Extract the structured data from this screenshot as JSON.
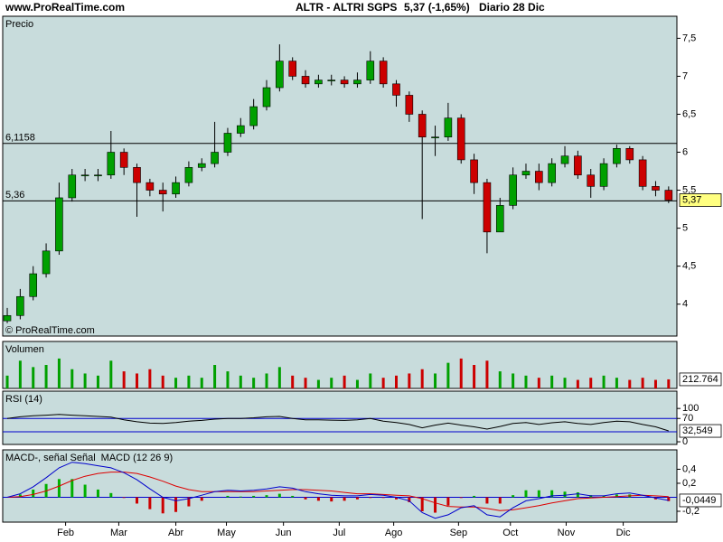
{
  "header": {
    "site": "www.ProRealTime.com",
    "title": "ALTR - ALTRI SGPS",
    "quote": "5,37 (-1,65%)",
    "period": "Diario  28 Dic"
  },
  "chart_data": [
    {
      "type": "candlestick",
      "title": "Precio",
      "watermark": "© ProRealTime.com",
      "xlim": [
        -0.35,
        51.64
      ],
      "ylim": [
        3.58,
        7.79
      ],
      "yticks": [
        {
          "value": 7.5,
          "label": "7,5"
        },
        7,
        {
          "value": 6.5,
          "label": "6,5"
        },
        6,
        {
          "value": 5.5,
          "label": "5,5"
        },
        5,
        {
          "value": 4.5,
          "label": "4,5"
        },
        4
      ],
      "up_color": "#00a000",
      "down_color": "#cc0000",
      "open": [
        3.78,
        3.85,
        4.1,
        4.4,
        4.7,
        5.4,
        5.7,
        5.7,
        5.7,
        6.0,
        5.8,
        5.6,
        5.5,
        5.45,
        5.6,
        5.8,
        5.85,
        6.0,
        6.25,
        6.35,
        6.6,
        6.85,
        7.2,
        7.0,
        6.9,
        6.95,
        6.95,
        6.9,
        6.95,
        7.2,
        6.9,
        6.75,
        6.5,
        6.2,
        6.2,
        6.45,
        5.9,
        5.6,
        4.95,
        5.3,
        5.7,
        5.75,
        5.6,
        5.85,
        5.95,
        5.7,
        5.55,
        5.85,
        6.05,
        5.9,
        5.55,
        5.5
      ],
      "high": [
        3.95,
        4.2,
        4.5,
        4.8,
        5.6,
        5.78,
        5.78,
        5.78,
        6.28,
        6.05,
        5.85,
        5.65,
        5.6,
        5.68,
        5.88,
        5.92,
        6.4,
        6.32,
        6.45,
        6.7,
        6.95,
        7.42,
        7.25,
        7.08,
        7.02,
        7.02,
        7.0,
        7.05,
        7.33,
        7.25,
        6.95,
        6.8,
        6.55,
        6.35,
        6.65,
        6.5,
        5.98,
        5.65,
        5.4,
        5.8,
        5.85,
        5.85,
        5.92,
        6.08,
        6.02,
        5.78,
        5.92,
        6.1,
        6.08,
        5.95,
        5.62,
        5.55
      ],
      "low": [
        3.75,
        3.8,
        4.05,
        4.35,
        4.65,
        5.35,
        5.62,
        5.62,
        5.65,
        5.7,
        5.15,
        5.42,
        5.22,
        5.4,
        5.55,
        5.75,
        5.8,
        5.95,
        6.2,
        6.3,
        6.55,
        6.8,
        6.95,
        6.85,
        6.85,
        6.88,
        6.85,
        6.85,
        6.9,
        6.85,
        6.6,
        6.4,
        5.12,
        5.95,
        6.15,
        5.85,
        5.45,
        4.67,
        4.95,
        5.25,
        5.65,
        5.5,
        5.55,
        5.8,
        5.65,
        5.4,
        5.5,
        5.8,
        5.85,
        5.5,
        5.42,
        5.33
      ],
      "close": [
        3.85,
        4.1,
        4.4,
        4.7,
        5.4,
        5.7,
        5.7,
        5.7,
        6.0,
        5.8,
        5.6,
        5.5,
        5.45,
        5.6,
        5.8,
        5.85,
        6.0,
        6.25,
        6.35,
        6.6,
        6.85,
        7.2,
        7.0,
        6.9,
        6.95,
        6.95,
        6.9,
        6.95,
        7.2,
        6.9,
        6.75,
        6.5,
        6.2,
        6.2,
        6.45,
        5.9,
        5.6,
        4.95,
        5.3,
        5.7,
        5.75,
        5.6,
        5.85,
        5.95,
        5.7,
        5.55,
        5.85,
        6.05,
        5.9,
        5.55,
        5.5,
        5.37
      ],
      "reference_lines": [
        {
          "value": 6.1158,
          "label": "6,1158"
        },
        {
          "value": 5.36,
          "label": "5,36"
        }
      ],
      "current": {
        "value": 5.37,
        "label": "5,37",
        "color": "#ffff80"
      }
    },
    {
      "type": "bar",
      "title": "Volumen",
      "xlim": [
        -0.35,
        51.64
      ],
      "ylim": [
        0,
        1100000
      ],
      "values": [
        300000,
        650000,
        500000,
        550000,
        700000,
        450000,
        350000,
        300000,
        650000,
        400000,
        350000,
        450000,
        300000,
        250000,
        300000,
        250000,
        550000,
        400000,
        300000,
        250000,
        350000,
        500000,
        300000,
        250000,
        200000,
        250000,
        300000,
        200000,
        350000,
        250000,
        300000,
        350000,
        450000,
        350000,
        600000,
        700000,
        550000,
        650000,
        400000,
        350000,
        300000,
        250000,
        300000,
        250000,
        200000,
        250000,
        300000,
        250000,
        200000,
        250000,
        200000,
        212764
      ],
      "current": {
        "value": 212764,
        "label": "212.764",
        "color": "#ffffff"
      }
    },
    {
      "type": "line",
      "title": "RSI (14)",
      "xlim": [
        -0.35,
        51.64
      ],
      "ylim": [
        -8,
        152
      ],
      "yticks": [
        0,
        70,
        100
      ],
      "levels": [
        70,
        30
      ],
      "level_color": "#0000cc",
      "series": [
        {
          "color": "#000000",
          "values": [
            70,
            75,
            78,
            80,
            82,
            80,
            78,
            76,
            74,
            66,
            60,
            56,
            55,
            58,
            62,
            64,
            68,
            70,
            70,
            72,
            75,
            76,
            70,
            66,
            66,
            65,
            64,
            66,
            70,
            62,
            58,
            52,
            42,
            50,
            56,
            50,
            45,
            38,
            46,
            55,
            58,
            52,
            57,
            60,
            55,
            52,
            58,
            62,
            60,
            52,
            45,
            32.549
          ]
        }
      ],
      "current": {
        "value": 32.549,
        "label": "32,549",
        "color": "#ffffff"
      }
    },
    {
      "type": "line",
      "xlim": [
        -0.35,
        51.64
      ],
      "ylim": [
        -0.355,
        0.677
      ],
      "yticks": [
        {
          "value": 0.4,
          "label": "0,4"
        },
        {
          "value": 0.2,
          "label": "0,2"
        },
        {
          "value": -0.2,
          "label": "-0,2"
        }
      ],
      "levels": [
        0
      ],
      "level_color": "#0000cc",
      "xticks": [
        {
          "value": 4.5,
          "label": "Feb"
        },
        {
          "value": 8.6,
          "label": "Mar"
        },
        {
          "value": 13.0,
          "label": "Abr"
        },
        {
          "value": 16.9,
          "label": "May"
        },
        {
          "value": 21.3,
          "label": "Jun"
        },
        {
          "value": 25.6,
          "label": "Jul"
        },
        {
          "value": 29.8,
          "label": "Ago"
        },
        {
          "value": 34.8,
          "label": "Sep"
        },
        {
          "value": 38.8,
          "label": "Oct"
        },
        {
          "value": 43.1,
          "label": "Nov"
        },
        {
          "value": 47.5,
          "label": "Dic"
        }
      ],
      "histogram": {
        "up_color": "#00b000",
        "down_color": "#cc0000",
        "values": [
          0,
          0.04,
          0.11,
          0.19,
          0.26,
          0.26,
          0.18,
          0.11,
          0.06,
          -0.01,
          -0.09,
          -0.17,
          -0.23,
          -0.21,
          -0.13,
          -0.05,
          0,
          0.02,
          0.01,
          0.02,
          0.03,
          0.05,
          0.02,
          -0.03,
          -0.05,
          -0.06,
          -0.05,
          -0.03,
          -0.01,
          -0.01,
          -0.03,
          -0.07,
          -0.2,
          -0.22,
          -0.12,
          -0.01,
          0.02,
          -0.09,
          -0.09,
          0.03,
          0.1,
          0.1,
          0.1,
          0.08,
          0.07,
          0.03,
          0.02,
          0.04,
          0.04,
          0,
          -0.03,
          -0.0549
        ]
      },
      "series": [
        {
          "name": "MACD-, señal Señal",
          "color": "#dd0000",
          "values": [
            0,
            0.01,
            0.04,
            0.09,
            0.16,
            0.24,
            0.3,
            0.34,
            0.36,
            0.36,
            0.34,
            0.29,
            0.23,
            0.16,
            0.11,
            0.08,
            0.08,
            0.08,
            0.08,
            0.08,
            0.09,
            0.1,
            0.11,
            0.11,
            0.1,
            0.09,
            0.07,
            0.05,
            0.05,
            0.04,
            0.03,
            0.02,
            -0.02,
            -0.08,
            -0.13,
            -0.14,
            -0.14,
            -0.16,
            -0.19,
            -0.18,
            -0.15,
            -0.12,
            -0.08,
            -0.05,
            -0.02,
            -0.01,
            0.0,
            0.01,
            0.02,
            0.03,
            0.02,
            0.01
          ]
        },
        {
          "name": "MACD (12 26 9)",
          "color": "#0000cc",
          "values": [
            0.0,
            0.05,
            0.15,
            0.28,
            0.42,
            0.5,
            0.48,
            0.45,
            0.42,
            0.35,
            0.25,
            0.12,
            0.0,
            -0.05,
            -0.02,
            0.03,
            0.08,
            0.1,
            0.09,
            0.1,
            0.12,
            0.15,
            0.13,
            0.08,
            0.05,
            0.03,
            0.02,
            0.02,
            0.04,
            0.03,
            0.0,
            -0.05,
            -0.22,
            -0.3,
            -0.25,
            -0.15,
            -0.12,
            -0.25,
            -0.28,
            -0.15,
            -0.05,
            -0.02,
            0.02,
            0.03,
            0.05,
            0.02,
            0.02,
            0.05,
            0.06,
            0.03,
            -0.01,
            -0.0449
          ]
        }
      ],
      "current": {
        "value": -0.0449,
        "label": "-0,0449",
        "color": "#ffffff"
      }
    }
  ]
}
